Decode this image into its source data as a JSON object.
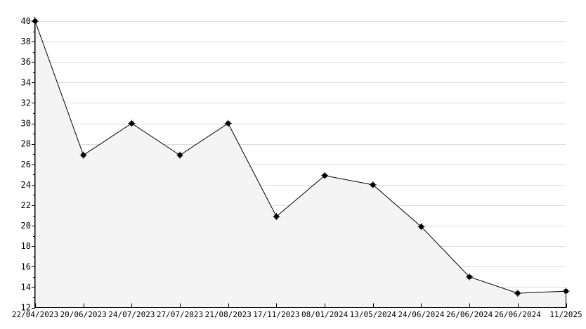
{
  "chart_data": {
    "type": "area",
    "title": "",
    "xlabel": "",
    "ylabel": "",
    "x_labels": [
      "22/04/2023",
      "20/06/2023",
      "24/07/2023",
      "27/07/2023",
      "21/08/2023",
      "17/11/2023",
      "08/01/2024",
      "13/05/2024",
      "24/06/2024",
      "26/06/2024",
      "26/06/2024",
      "11/2025"
    ],
    "values": [
      40,
      26.9,
      30,
      26.9,
      30,
      20.9,
      24.9,
      24,
      19.9,
      15,
      13.4,
      13.6
    ],
    "ylim": [
      12,
      40
    ],
    "y_major_step": 2,
    "y_minor_step": 1,
    "grid": "horizontal-major-only",
    "legend": "none",
    "marker": "black-dot",
    "colors": {
      "background": "#ffffff",
      "line": "#000000",
      "marker": "#000000",
      "fill": "#f4f4f4",
      "grid": "#dcdcdc",
      "axis": "#000000",
      "text": "#000000"
    }
  }
}
